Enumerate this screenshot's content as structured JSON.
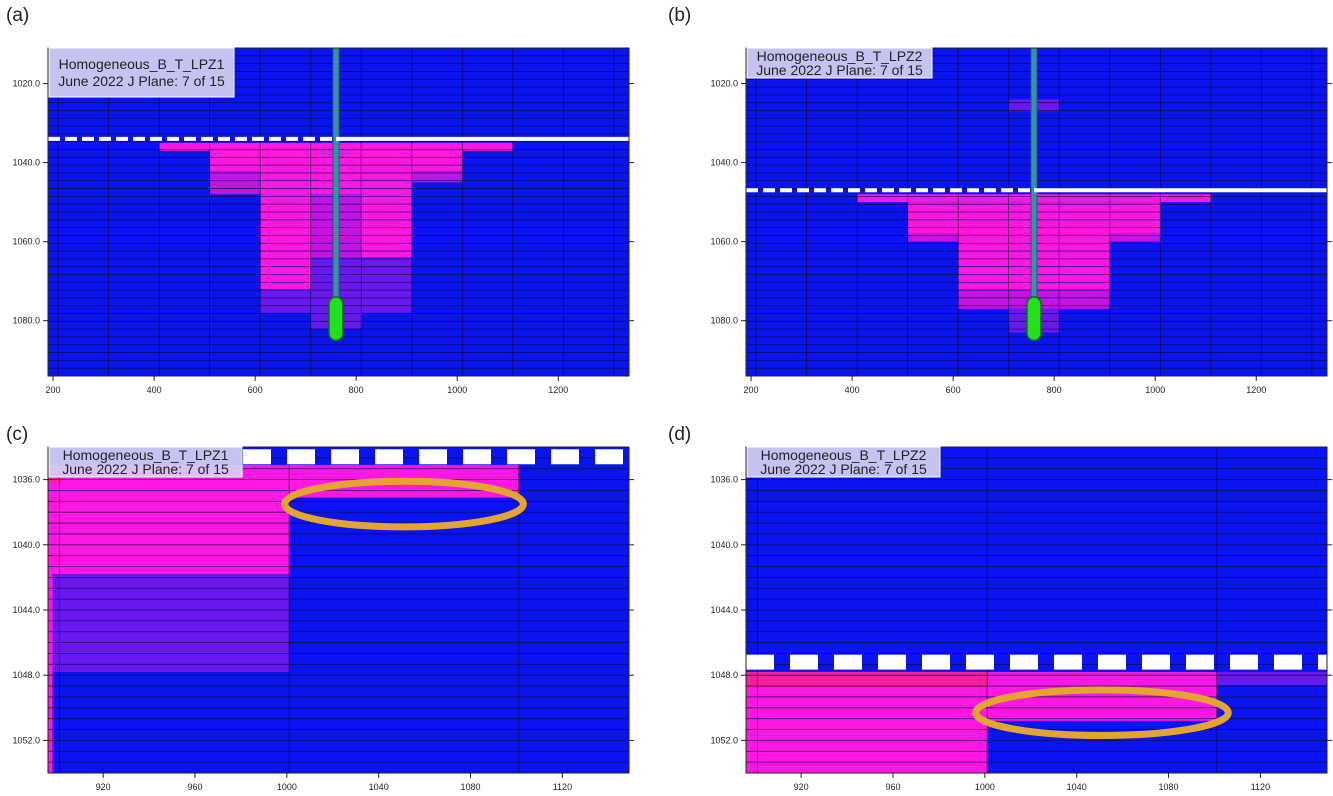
{
  "colors": {
    "background": "#0a14f2",
    "magenta": "#ff17e4",
    "magenta_dark": "#c413e6",
    "violet": "#6a18f0",
    "hot_pink": "#ff1f9e",
    "cell_line": "#0a0a3a",
    "water_table": "#ffffff",
    "well_casing": "#3b8fa8",
    "screen": "#22e01e",
    "ellipse": "#e3a531",
    "title_box": "#d6d2f2"
  },
  "panels": [
    {
      "label": "(a)",
      "title_line1": "Homogeneous_B_T_LPZ1",
      "title_line2": "June 2022   J Plane: 7 of 15",
      "x_ticks": [
        "200",
        "400",
        "600",
        "800",
        "1000",
        "1200"
      ],
      "y_ticks": [
        "1020.0",
        "1040.0",
        "1060.0",
        "1080.0"
      ],
      "x_range": [
        190,
        1340
      ],
      "y_range": [
        1011,
        1094
      ],
      "water_table": 1034,
      "water_table_style": "long-dash",
      "well": {
        "x": 760,
        "screen_top": 1074,
        "screen_bottom": 1085
      },
      "blocks": [
        {
          "x": [
            410,
            1110
          ],
          "y": [
            1035,
            1037
          ],
          "c": "magenta"
        },
        {
          "x": [
            510,
            1010
          ],
          "y": [
            1037,
            1042
          ],
          "c": "magenta"
        },
        {
          "x": [
            510,
            610
          ],
          "y": [
            1042,
            1048
          ],
          "c": "magenta_dark"
        },
        {
          "x": [
            910,
            1010
          ],
          "y": [
            1042,
            1045
          ],
          "c": "magenta_dark"
        },
        {
          "x": [
            610,
            910
          ],
          "y": [
            1042,
            1048
          ],
          "c": "magenta"
        },
        {
          "x": [
            610,
            710
          ],
          "y": [
            1048,
            1072
          ],
          "c": "magenta"
        },
        {
          "x": [
            710,
            810
          ],
          "y": [
            1048,
            1064
          ],
          "c": "magenta_dark"
        },
        {
          "x": [
            810,
            910
          ],
          "y": [
            1048,
            1064
          ],
          "c": "magenta"
        },
        {
          "x": [
            610,
            710
          ],
          "y": [
            1072,
            1078
          ],
          "c": "violet"
        },
        {
          "x": [
            810,
            910
          ],
          "y": [
            1064,
            1078
          ],
          "c": "violet"
        },
        {
          "x": [
            710,
            810
          ],
          "y": [
            1064,
            1082
          ],
          "c": "violet"
        }
      ]
    },
    {
      "label": "(b)",
      "title_line1": "Homogeneous_B_T_LPZ2",
      "title_line2": "June 2022   J Plane: 7 of 15",
      "x_ticks": [
        "200",
        "400",
        "600",
        "800",
        "1000",
        "1200"
      ],
      "y_ticks": [
        "1020.0",
        "1040.0",
        "1060.0",
        "1080.0"
      ],
      "x_range": [
        190,
        1340
      ],
      "y_range": [
        1011,
        1094
      ],
      "water_table": 1047,
      "water_table_style": "long-dash",
      "well": {
        "x": 760,
        "screen_top": 1074,
        "screen_bottom": 1085
      },
      "blocks": [
        {
          "x": [
            710,
            810
          ],
          "y": [
            1024,
            1027
          ],
          "c": "violet"
        },
        {
          "x": [
            410,
            1110
          ],
          "y": [
            1048,
            1050
          ],
          "c": "magenta"
        },
        {
          "x": [
            510,
            1010
          ],
          "y": [
            1050,
            1058
          ],
          "c": "magenta"
        },
        {
          "x": [
            510,
            610
          ],
          "y": [
            1058,
            1060
          ],
          "c": "magenta_dark"
        },
        {
          "x": [
            910,
            1010
          ],
          "y": [
            1058,
            1060
          ],
          "c": "magenta_dark"
        },
        {
          "x": [
            610,
            910
          ],
          "y": [
            1058,
            1072
          ],
          "c": "magenta"
        },
        {
          "x": [
            610,
            910
          ],
          "y": [
            1072,
            1077
          ],
          "c": "magenta_dark"
        },
        {
          "x": [
            710,
            810
          ],
          "y": [
            1077,
            1083
          ],
          "c": "violet"
        }
      ]
    },
    {
      "label": "(c)",
      "title_line1": "Homogeneous_B_T_LPZ1",
      "title_line2": "June 2022   J Plane: 7 of 15",
      "x_ticks": [
        "920",
        "960",
        "1000",
        "1040",
        "1080",
        "1120"
      ],
      "y_ticks": [
        "1036.0",
        "1040.0",
        "1044.0",
        "1048.0",
        "1052.0"
      ],
      "x_range": [
        896,
        1149
      ],
      "y_range": [
        1034,
        1054
      ],
      "water_table": 1034.6,
      "water_table_style": "block-dash",
      "ellipse": {
        "cx": 1051,
        "cy": 1037.5,
        "rx": 52,
        "ry": 1.4
      },
      "blocks": [
        {
          "x": [
            896,
            1001
          ],
          "y": [
            1035.1,
            1041.8
          ],
          "c": "magenta"
        },
        {
          "x": [
            1001,
            1101
          ],
          "y": [
            1035.1,
            1037.1
          ],
          "c": "magenta"
        },
        {
          "x": [
            898,
            1001
          ],
          "y": [
            1041.8,
            1047.8
          ],
          "c": "violet"
        },
        {
          "x": [
            896,
            898
          ],
          "y": [
            1041.8,
            1054
          ],
          "c": "magenta"
        },
        {
          "x": [
            896,
            901
          ],
          "y": [
            1035.1,
            1036.2
          ],
          "c": "hot_pink"
        }
      ]
    },
    {
      "label": "(d)",
      "title_line1": "Homogeneous_B_T_LPZ2",
      "title_line2": "June 2022   J Plane: 7 of 15",
      "x_ticks": [
        "920",
        "960",
        "1000",
        "1040",
        "1080",
        "1120"
      ],
      "y_ticks": [
        "1036.0",
        "1040.0",
        "1044.0",
        "1048.0",
        "1052.0"
      ],
      "x_range": [
        896,
        1149
      ],
      "y_range": [
        1034,
        1054
      ],
      "water_table": 1047.2,
      "water_table_style": "block-dash",
      "ellipse": {
        "cx": 1051,
        "cy": 1050.3,
        "rx": 55,
        "ry": 1.4
      },
      "blocks": [
        {
          "x": [
            896,
            1001
          ],
          "y": [
            1047.8,
            1054
          ],
          "c": "magenta"
        },
        {
          "x": [
            896,
            1001
          ],
          "y": [
            1047.8,
            1048.8
          ],
          "c": "hot_pink"
        },
        {
          "x": [
            1001,
            1101
          ],
          "y": [
            1047.8,
            1050.8
          ],
          "c": "magenta"
        },
        {
          "x": [
            1101,
            1149
          ],
          "y": [
            1047.8,
            1048.6
          ],
          "c": "violet"
        }
      ]
    }
  ]
}
